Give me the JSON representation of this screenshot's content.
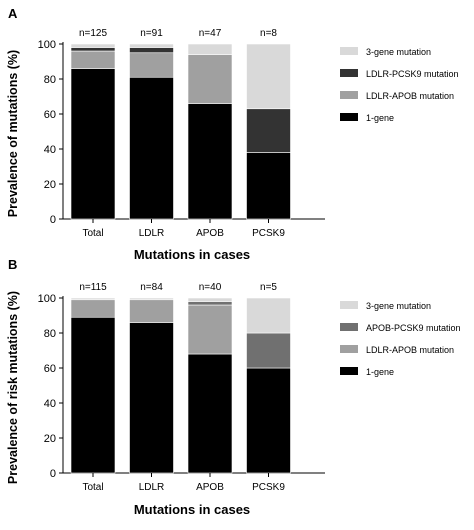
{
  "chart_data": [
    {
      "type": "bar",
      "stacked": true,
      "panel_label": "A",
      "categories": [
        "Total",
        "LDLR",
        "APOB",
        "PCSK9"
      ],
      "n_labels": [
        "n=125",
        "n=91",
        "n=47",
        "n=8"
      ],
      "ylabel": "Prevalence of mutations (%)",
      "xlabel": "Mutations in cases",
      "ylim": [
        0,
        100
      ],
      "yticks": [
        0,
        20,
        40,
        60,
        80,
        100
      ],
      "legend_position": "right",
      "series": [
        {
          "name": "1-gene",
          "color": "#000000",
          "values": [
            86,
            81,
            66,
            38
          ]
        },
        {
          "name": "LDLR-APOB mutation",
          "color": "#a0a0a0",
          "values": [
            10,
            14,
            28,
            0
          ]
        },
        {
          "name": "LDLR-PCSK9 mutation",
          "color": "#333333",
          "values": [
            2,
            3,
            0,
            25
          ]
        },
        {
          "name": "3-gene mutation",
          "color": "#d9d9d9",
          "values": [
            2,
            2,
            6,
            37
          ]
        }
      ],
      "legend_order": [
        3,
        2,
        1,
        0
      ]
    },
    {
      "type": "bar",
      "stacked": true,
      "panel_label": "B",
      "categories": [
        "Total",
        "LDLR",
        "APOB",
        "PCSK9"
      ],
      "n_labels": [
        "n=115",
        "n=84",
        "n=40",
        "n=5"
      ],
      "ylabel": "Prevalence of risk mutations (%)",
      "xlabel": "Mutations in cases",
      "ylim": [
        0,
        100
      ],
      "yticks": [
        0,
        20,
        40,
        60,
        80,
        100
      ],
      "legend_position": "right",
      "series": [
        {
          "name": "1-gene",
          "color": "#000000",
          "values": [
            89,
            86,
            68,
            60
          ]
        },
        {
          "name": "LDLR-APOB mutation",
          "color": "#a0a0a0",
          "values": [
            10,
            13,
            28,
            0
          ]
        },
        {
          "name": "APOB-PCSK9 mutation",
          "color": "#707070",
          "values": [
            0,
            0,
            2,
            20
          ]
        },
        {
          "name": "3-gene mutation",
          "color": "#d9d9d9",
          "values": [
            1,
            1,
            2,
            20
          ]
        }
      ],
      "legend_order": [
        3,
        2,
        1,
        0
      ]
    }
  ]
}
